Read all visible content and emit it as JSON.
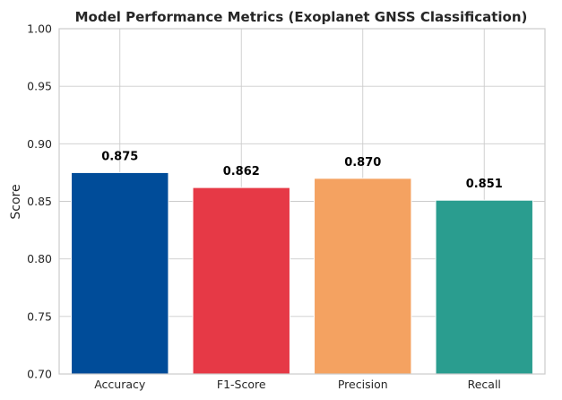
{
  "chart_data": {
    "type": "bar",
    "title": "Model Performance Metrics (Exoplanet GNSS Classification)",
    "xlabel": "",
    "ylabel": "Score",
    "categories": [
      "Accuracy",
      "F1-Score",
      "Precision",
      "Recall"
    ],
    "values": [
      0.875,
      0.862,
      0.87,
      0.851
    ],
    "data_labels": [
      "0.875",
      "0.862",
      "0.870",
      "0.851"
    ],
    "colors": [
      "#004C99",
      "#E63946",
      "#F4A261",
      "#2A9D8F"
    ],
    "ylim": [
      0.7,
      1.0
    ],
    "yticks": [
      0.7,
      0.75,
      0.8,
      0.85,
      0.9,
      0.95,
      1.0
    ],
    "ytick_labels": [
      "0.70",
      "0.75",
      "0.80",
      "0.85",
      "0.90",
      "0.95",
      "1.00"
    ],
    "grid": true,
    "grid_color": "#cccccc",
    "spine_color": "#cccccc"
  }
}
